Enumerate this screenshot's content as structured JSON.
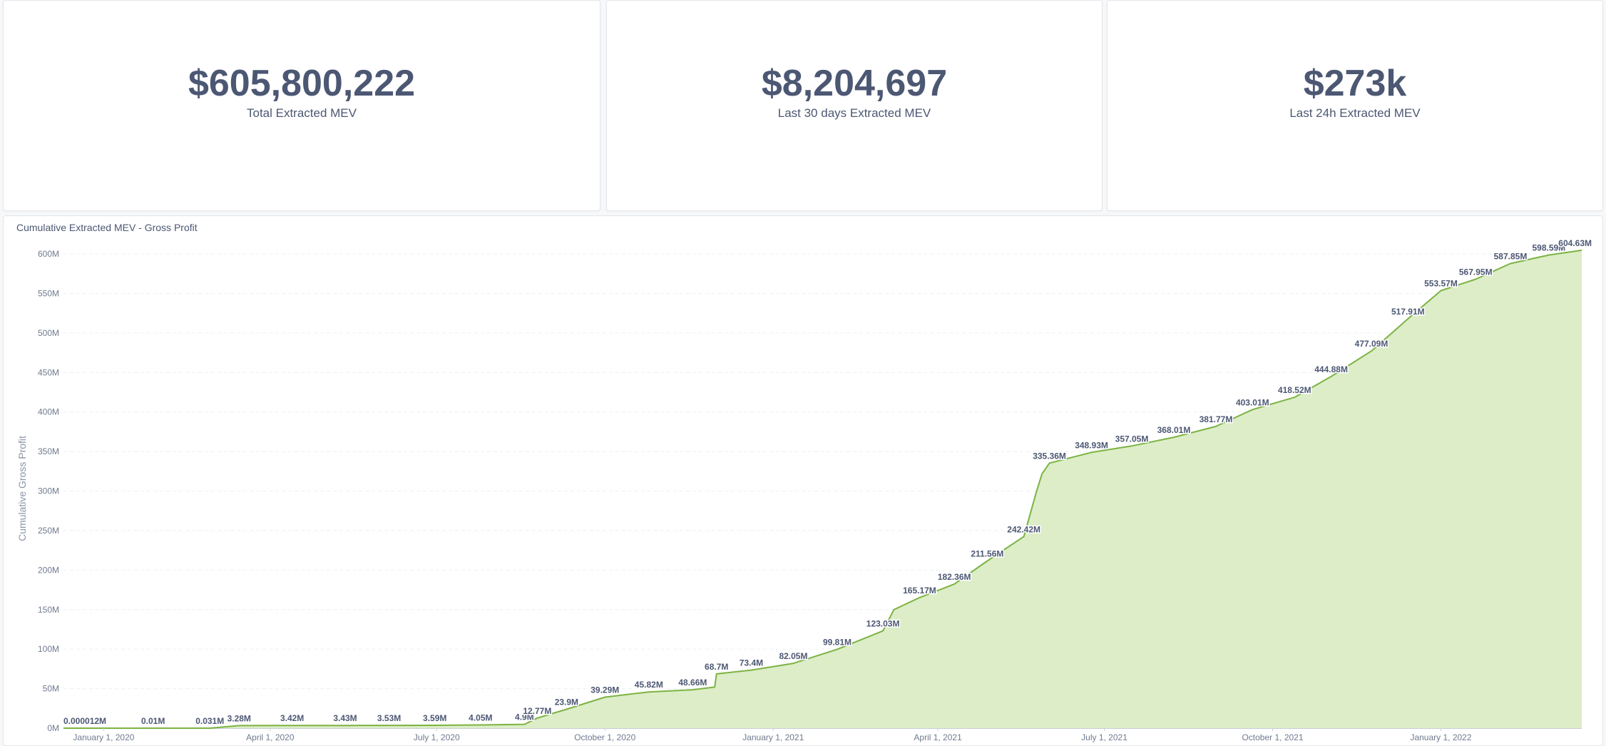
{
  "stats": [
    {
      "value": "$605,800,222",
      "label": "Total Extracted MEV"
    },
    {
      "value": "$8,204,697",
      "label": "Last 30 days Extracted MEV"
    },
    {
      "value": "$273k",
      "label": "Last 24h Extracted MEV"
    }
  ],
  "colors": {
    "accent_line": "#7cb342",
    "area_fill": "#dcedc8",
    "text": "#4c5773"
  },
  "chart_data": {
    "type": "area",
    "title": "Cumulative Extracted MEV - Gross Profit",
    "ylabel": "Cumulative Gross Profit",
    "xlabel": "",
    "ylim": [
      0,
      600000000
    ],
    "xlim": [
      "2019-12-10",
      "2022-03-19"
    ],
    "grid": true,
    "yticks": [
      {
        "value": 0,
        "label": "0M"
      },
      {
        "value": 50000000,
        "label": "50M"
      },
      {
        "value": 100000000,
        "label": "100M"
      },
      {
        "value": 150000000,
        "label": "150M"
      },
      {
        "value": 200000000,
        "label": "200M"
      },
      {
        "value": 250000000,
        "label": "250M"
      },
      {
        "value": 300000000,
        "label": "300M"
      },
      {
        "value": 350000000,
        "label": "350M"
      },
      {
        "value": 400000000,
        "label": "400M"
      },
      {
        "value": 450000000,
        "label": "450M"
      },
      {
        "value": 500000000,
        "label": "500M"
      },
      {
        "value": 550000000,
        "label": "550M"
      },
      {
        "value": 600000000,
        "label": "600M"
      }
    ],
    "xticks": [
      {
        "date": "2020-01-01",
        "label": "January 1, 2020"
      },
      {
        "date": "2020-04-01",
        "label": "April 1, 2020"
      },
      {
        "date": "2020-07-01",
        "label": "July 1, 2020"
      },
      {
        "date": "2020-10-01",
        "label": "October 1, 2020"
      },
      {
        "date": "2021-01-01",
        "label": "January 1, 2021"
      },
      {
        "date": "2021-04-01",
        "label": "April 1, 2021"
      },
      {
        "date": "2021-07-01",
        "label": "July 1, 2021"
      },
      {
        "date": "2021-10-01",
        "label": "October 1, 2021"
      },
      {
        "date": "2022-01-01",
        "label": "January 1, 2022"
      }
    ],
    "series": [
      {
        "values": [
          {
            "x": "2019-12-10",
            "y": 12,
            "label": "0.000012M"
          },
          {
            "x": "2020-01-28",
            "y": 10000,
            "label": "0.01M"
          },
          {
            "x": "2020-02-28",
            "y": 31000,
            "label": "0.031M"
          },
          {
            "x": "2020-03-15",
            "y": 3280000,
            "label": "3.28M"
          },
          {
            "x": "2020-04-13",
            "y": 3420000,
            "label": "3.42M"
          },
          {
            "x": "2020-05-12",
            "y": 3430000,
            "label": "3.43M"
          },
          {
            "x": "2020-06-05",
            "y": 3530000,
            "label": "3.53M"
          },
          {
            "x": "2020-06-30",
            "y": 3590000,
            "label": "3.59M"
          },
          {
            "x": "2020-07-25",
            "y": 4050000,
            "label": "4.05M"
          },
          {
            "x": "2020-08-18",
            "y": 4900000,
            "label": "4.9M"
          },
          {
            "x": "2020-08-25",
            "y": 12770000,
            "label": "12.77M"
          },
          {
            "x": "2020-09-10",
            "y": 23900000,
            "label": "23.9M"
          },
          {
            "x": "2020-10-01",
            "y": 39290000,
            "label": "39.29M"
          },
          {
            "x": "2020-10-25",
            "y": 45820000,
            "label": "45.82M"
          },
          {
            "x": "2020-11-18",
            "y": 48660000,
            "label": "48.66M"
          },
          {
            "x": "2020-11-30",
            "y": 52000000,
            "label": ""
          },
          {
            "x": "2020-12-01",
            "y": 68700000,
            "label": "68.7M"
          },
          {
            "x": "2020-12-20",
            "y": 73400000,
            "label": "73.4M"
          },
          {
            "x": "2021-01-12",
            "y": 82050000,
            "label": "82.05M"
          },
          {
            "x": "2021-02-05",
            "y": 99810000,
            "label": "99.81M"
          },
          {
            "x": "2021-03-02",
            "y": 123030000,
            "label": "123.03M"
          },
          {
            "x": "2021-03-08",
            "y": 150000000,
            "label": ""
          },
          {
            "x": "2021-03-22",
            "y": 165170000,
            "label": "165.17M"
          },
          {
            "x": "2021-04-10",
            "y": 182360000,
            "label": "182.36M"
          },
          {
            "x": "2021-04-28",
            "y": 211560000,
            "label": "211.56M"
          },
          {
            "x": "2021-05-18",
            "y": 242420000,
            "label": "242.42M"
          },
          {
            "x": "2021-05-25",
            "y": 300000000,
            "label": ""
          },
          {
            "x": "2021-05-28",
            "y": 322000000,
            "label": ""
          },
          {
            "x": "2021-06-01",
            "y": 335360000,
            "label": "335.36M"
          },
          {
            "x": "2021-06-24",
            "y": 348930000,
            "label": "348.93M"
          },
          {
            "x": "2021-07-16",
            "y": 357050000,
            "label": "357.05M"
          },
          {
            "x": "2021-08-08",
            "y": 368010000,
            "label": "368.01M"
          },
          {
            "x": "2021-08-31",
            "y": 381770000,
            "label": "381.77M"
          },
          {
            "x": "2021-09-20",
            "y": 403010000,
            "label": "403.01M"
          },
          {
            "x": "2021-10-13",
            "y": 418520000,
            "label": "418.52M"
          },
          {
            "x": "2021-11-02",
            "y": 444880000,
            "label": "444.88M"
          },
          {
            "x": "2021-11-24",
            "y": 477090000,
            "label": "477.09M"
          },
          {
            "x": "2021-12-14",
            "y": 517910000,
            "label": "517.91M"
          },
          {
            "x": "2022-01-01",
            "y": 553570000,
            "label": "553.57M"
          },
          {
            "x": "2022-01-20",
            "y": 567950000,
            "label": "567.95M"
          },
          {
            "x": "2022-02-08",
            "y": 587850000,
            "label": "587.85M"
          },
          {
            "x": "2022-03-01",
            "y": 598590000,
            "label": "598.59M"
          },
          {
            "x": "2022-03-19",
            "y": 604630000,
            "label": "604.63M"
          }
        ]
      }
    ]
  }
}
